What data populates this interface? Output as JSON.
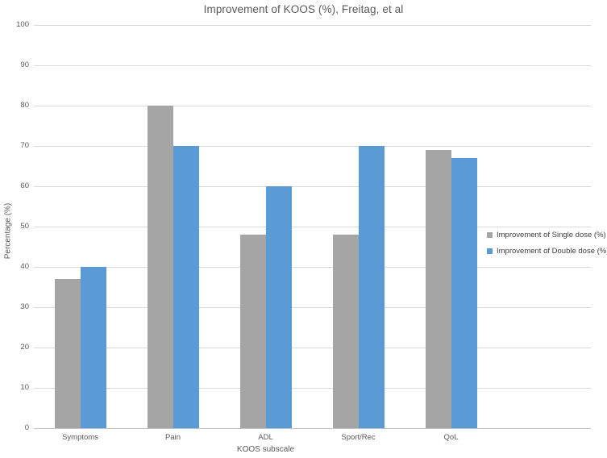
{
  "chart_data": {
    "type": "bar",
    "title": "Improvement of KOOS (%), Freitag, et al",
    "xlabel": "KOOS subscale",
    "ylabel": "Percentage (%)",
    "categories": [
      "Symptoms",
      "Pain",
      "ADL",
      "Sport/Rec",
      "QoL"
    ],
    "series": [
      {
        "name": "Improvement of Single dose (%)",
        "color": "#a5a5a5",
        "values": [
          37,
          80,
          48,
          48,
          69
        ]
      },
      {
        "name": "Improvement of Double dose (%)",
        "color": "#5b9bd5",
        "values": [
          40,
          70,
          60,
          70,
          67
        ]
      }
    ],
    "ylim": [
      0,
      100
    ],
    "ytick_step": 10,
    "yticks": [
      0,
      10,
      20,
      30,
      40,
      50,
      60,
      70,
      80,
      90,
      100
    ],
    "grid": true,
    "legend_position": "right",
    "colors": {
      "background": "#ffffff",
      "gridline": "#d9d9d9",
      "axis_line": "#c3c3c3",
      "text": "#595959",
      "legend_text": "#404040"
    }
  }
}
